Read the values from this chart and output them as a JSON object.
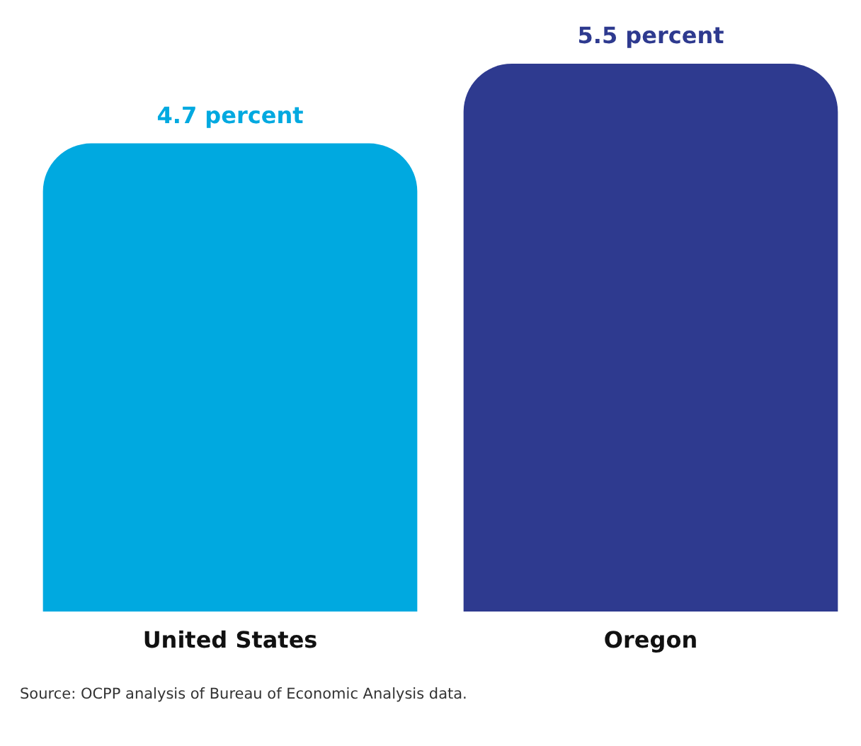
{
  "chart_data": {
    "type": "bar",
    "categories": [
      "United States",
      "Oregon"
    ],
    "values": [
      4.7,
      5.5
    ],
    "colors": [
      "#00a9e0",
      "#2e3a8f"
    ],
    "value_labels": [
      "4.7 percent",
      "5.5 percent"
    ],
    "annotations": [
      "Source: OCPP analysis of Bureau of Economic Analysis data."
    ]
  }
}
